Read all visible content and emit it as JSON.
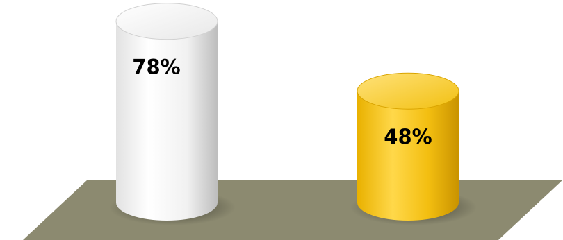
{
  "chart_data": {
    "type": "bar",
    "style": "3d-cylinder",
    "title": "",
    "xlabel": "",
    "ylabel": "",
    "categories": [
      "",
      ""
    ],
    "values": [
      78,
      48
    ],
    "labels": [
      "78%",
      "48%"
    ],
    "unit": "%",
    "colors": [
      "#e6e6e6",
      "#f2c012"
    ],
    "floor_color": "#8c8a70",
    "ylim": [
      0,
      100
    ],
    "grid": false,
    "legend": "none"
  }
}
